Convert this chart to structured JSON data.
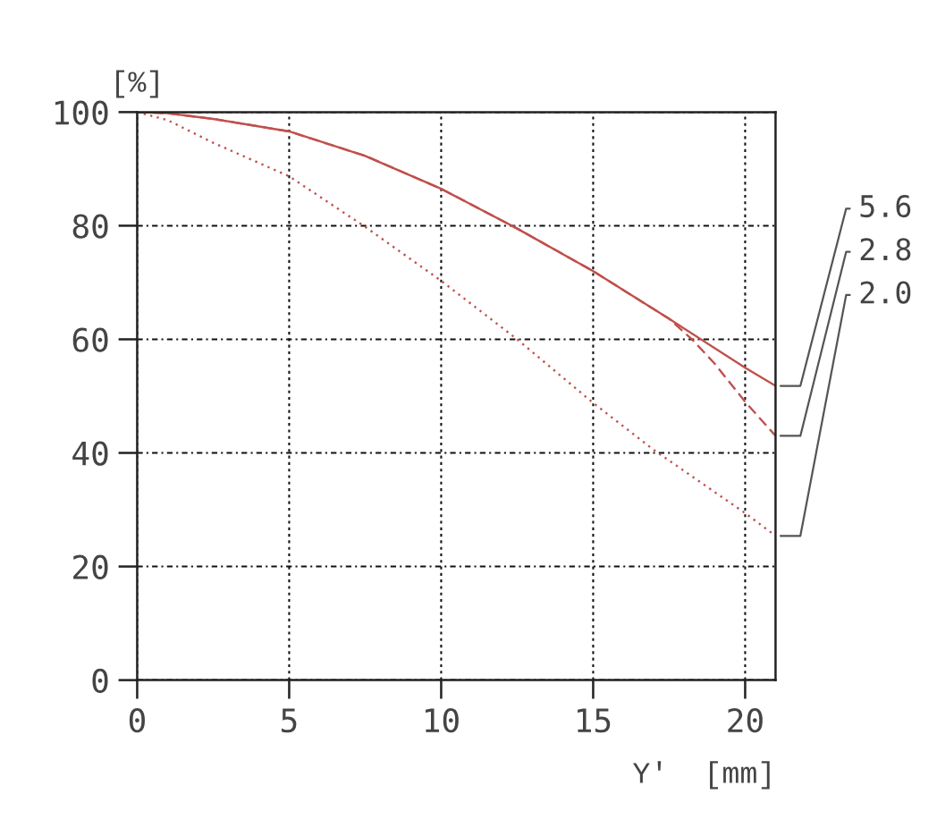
{
  "chart_data": {
    "type": "line",
    "xlabel": "Y'  [mm]",
    "ylabel": "[%]",
    "xlim": [
      0,
      21
    ],
    "ylim": [
      0,
      100
    ],
    "xticks": [
      0,
      5,
      10,
      15,
      20
    ],
    "yticks": [
      0,
      20,
      40,
      60,
      80,
      100
    ],
    "grid": true,
    "series": [
      {
        "name": "5.6",
        "color": "#c0504d",
        "line_style": "solid",
        "x": [
          0,
          1,
          2.5,
          5,
          7.5,
          10,
          12.5,
          15,
          17.5,
          20,
          21
        ],
        "values": [
          100,
          99.8,
          98.8,
          96.6,
          92.3,
          86.5,
          79.5,
          72,
          63.6,
          55,
          51.8
        ]
      },
      {
        "name": "2.8",
        "color": "#c0504d",
        "line_style": "dashed",
        "x": [
          0,
          1,
          2.5,
          5,
          7.5,
          10,
          12.5,
          15,
          17.5,
          18.25,
          19,
          20,
          21
        ],
        "values": [
          100,
          99.8,
          98.8,
          96.6,
          92.3,
          86.5,
          79.5,
          72,
          63.6,
          60,
          55.7,
          49,
          43
        ]
      },
      {
        "name": "2.0",
        "color": "#c0504d",
        "line_style": "dotted",
        "x": [
          0,
          1,
          2.5,
          5,
          7.5,
          10,
          12.5,
          15,
          17,
          20,
          21
        ],
        "values": [
          100,
          98.6,
          94.6,
          88.7,
          79.8,
          70.3,
          60,
          48.8,
          40.5,
          29.4,
          25.4
        ]
      }
    ]
  }
}
